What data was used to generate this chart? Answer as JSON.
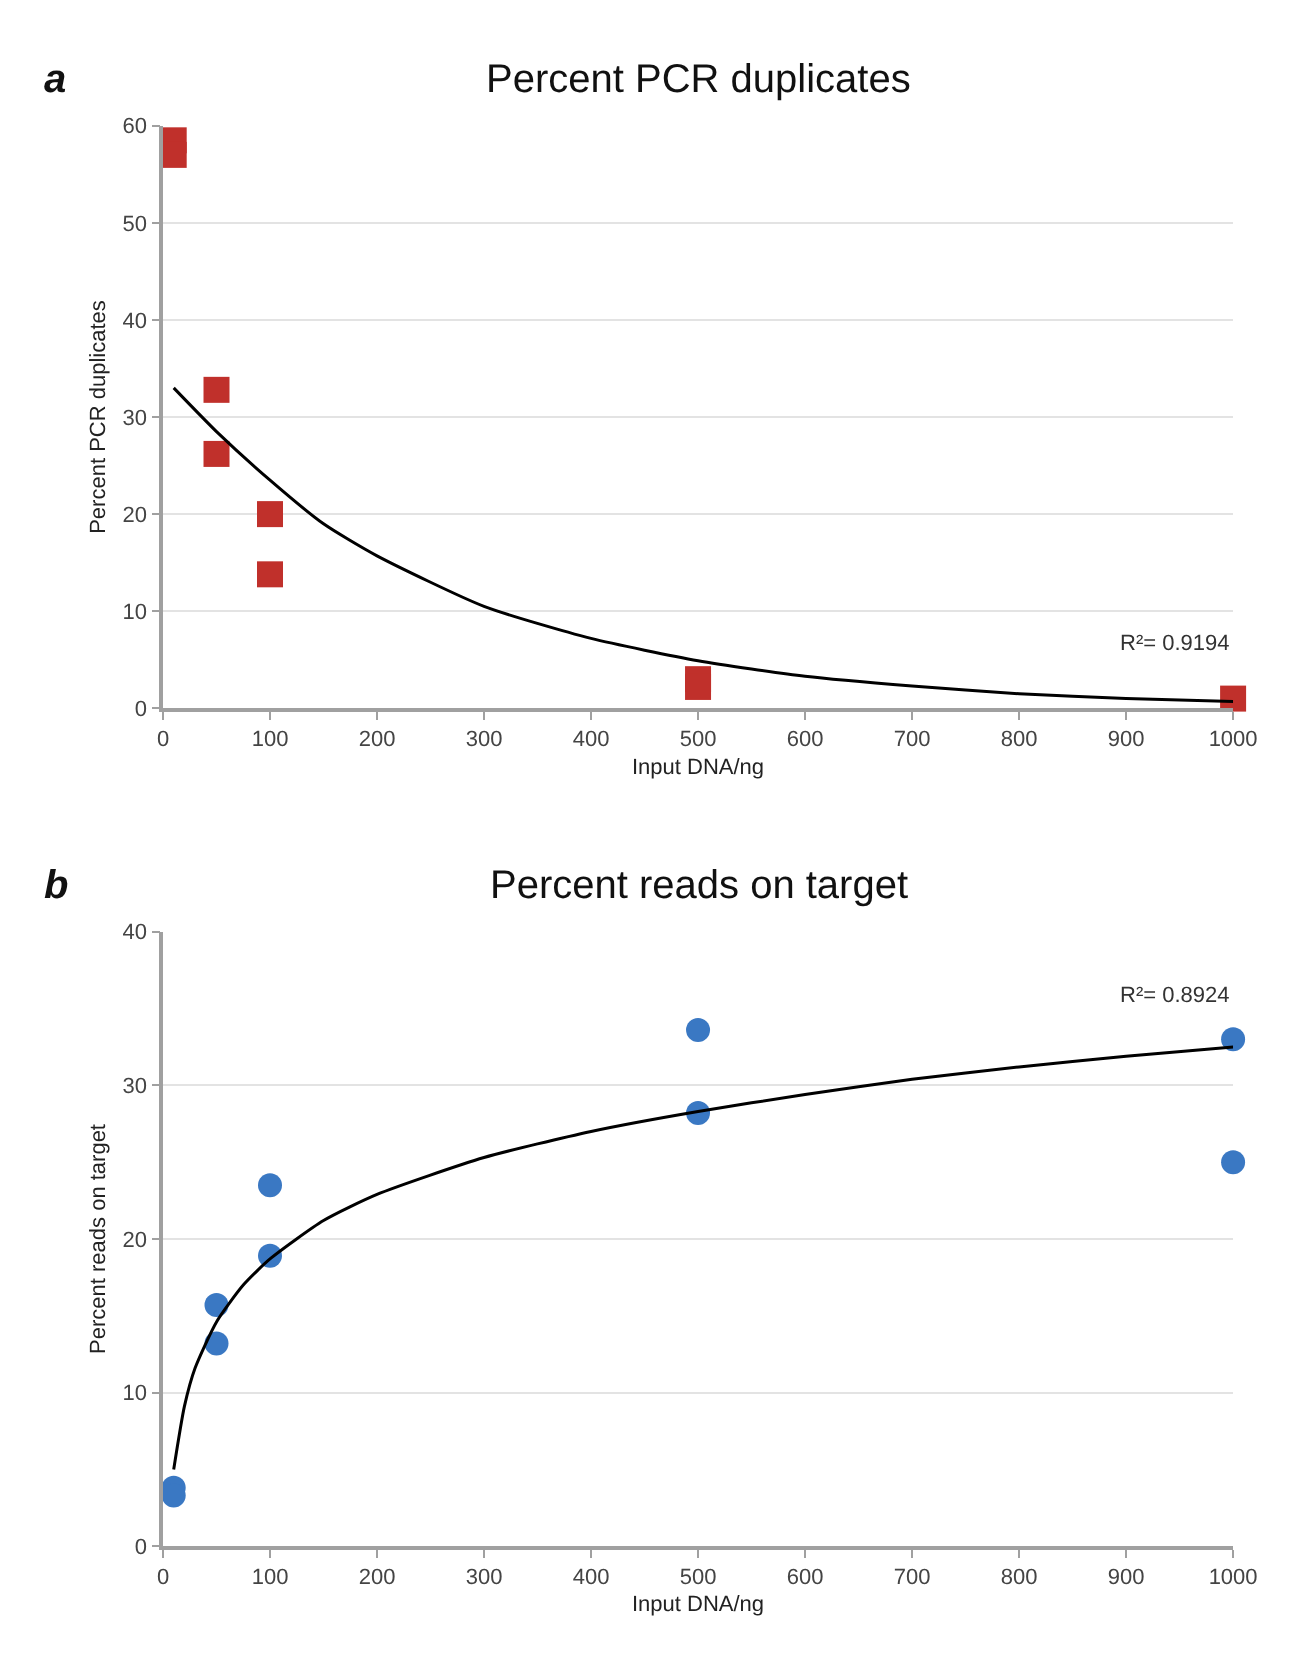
{
  "chart_data": [
    {
      "type": "scatter",
      "title": "Percent PCR duplicates",
      "xlabel": "Input DNA/ng",
      "ylabel": "Percent PCR duplicates",
      "xlim": [
        0,
        1000
      ],
      "xticks": [
        0,
        100,
        200,
        300,
        400,
        500,
        600,
        700,
        800,
        900,
        1000
      ],
      "ylim": [
        0,
        60
      ],
      "yticks": [
        0,
        10,
        20,
        30,
        40,
        50,
        60
      ],
      "grid": "y",
      "annotations": [
        "a",
        "R²= 0.9194"
      ],
      "series": [
        {
          "marker": "square",
          "color": "#c0302b",
          "x": [
            10,
            10,
            50,
            50,
            100,
            100,
            500,
            500,
            1000
          ],
          "values": [
            58.5,
            57,
            32.8,
            26.2,
            20,
            13.8,
            3,
            2.2,
            1
          ]
        },
        {
          "type": "line",
          "marker": "none",
          "color": "#000000",
          "x": [
            10,
            50,
            100,
            150,
            200,
            300,
            400,
            500,
            600,
            700,
            800,
            900,
            1000
          ],
          "values": [
            33,
            28.5,
            23.5,
            19,
            15.7,
            10.5,
            7.2,
            4.9,
            3.3,
            2.3,
            1.5,
            1,
            0.7
          ]
        }
      ]
    },
    {
      "type": "scatter",
      "title": "Percent reads on target",
      "xlabel": "Input DNA/ng",
      "ylabel": "Percent reads on target",
      "xlim": [
        0,
        1000
      ],
      "xticks": [
        0,
        100,
        200,
        300,
        400,
        500,
        600,
        700,
        800,
        900,
        1000
      ],
      "ylim": [
        0,
        40
      ],
      "yticks": [
        0,
        10,
        20,
        30,
        40
      ],
      "grid": "y",
      "annotations": [
        "b",
        "R²= 0.8924"
      ],
      "series": [
        {
          "marker": "circle",
          "color": "#3a78c3",
          "x": [
            10,
            10,
            50,
            50,
            100,
            100,
            500,
            500,
            1000,
            1000
          ],
          "values": [
            3.8,
            3.3,
            15.7,
            13.2,
            23.5,
            18.9,
            33.6,
            28.2,
            33,
            25
          ]
        },
        {
          "type": "line",
          "marker": "none",
          "color": "#000000",
          "x": [
            10,
            20,
            30,
            50,
            75,
            100,
            150,
            200,
            300,
            400,
            500,
            600,
            700,
            800,
            900,
            1000
          ],
          "values": [
            5,
            9.1,
            11.6,
            14.6,
            17,
            18.7,
            21.2,
            22.9,
            25.3,
            27,
            28.3,
            29.4,
            30.4,
            31.2,
            31.9,
            32.5
          ]
        }
      ]
    }
  ]
}
